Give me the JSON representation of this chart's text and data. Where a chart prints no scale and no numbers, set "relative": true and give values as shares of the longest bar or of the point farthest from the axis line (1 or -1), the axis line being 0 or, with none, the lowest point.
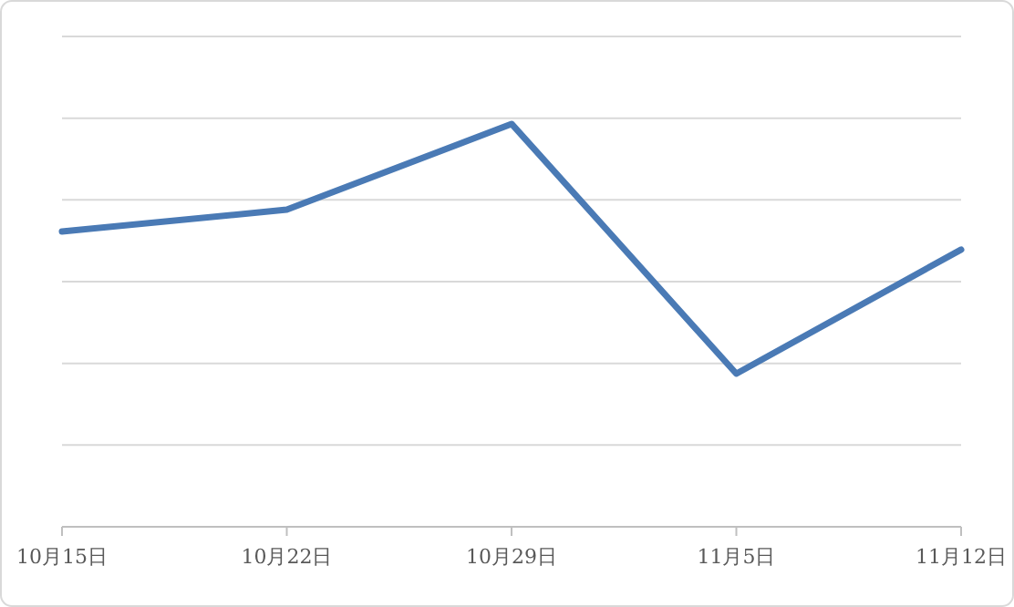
{
  "chart_data": {
    "type": "line",
    "relative": true,
    "grid": "y",
    "categories": [
      "10月15日",
      "10月22日",
      "10月29日",
      "11月5日",
      "11月12日"
    ],
    "series": [
      {
        "color": "#4a7ab5",
        "values": [
          0.733,
          0.787,
          1,
          0.38,
          0.688
        ]
      }
    ]
  }
}
